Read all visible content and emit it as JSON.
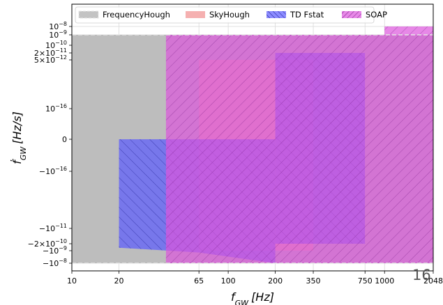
{
  "chart_data": {
    "type": "area",
    "xlabel": "f_GW [Hz]",
    "ylabel": "ḟ_GW [Hz/s]",
    "x_scale": "log",
    "y_scale": "symlog",
    "xlim": [
      10,
      2048
    ],
    "x_ticks": [
      10,
      20,
      65,
      100,
      200,
      350,
      750,
      1000,
      2048
    ],
    "y_ticks": [
      {
        "label": "10^-8",
        "value": 1e-08
      },
      {
        "label": "10^-9",
        "value": 1e-09
      },
      {
        "label": "10^-10",
        "value": 1e-10
      },
      {
        "label": "2×10^-11",
        "value": 2e-11
      },
      {
        "label": "5×10^-12",
        "value": 5e-12
      },
      {
        "label": "10^-16",
        "value": 1e-16
      },
      {
        "label": "0",
        "value": 0
      },
      {
        "label": "-10^-16",
        "value": -1e-16
      },
      {
        "label": "-10^-11",
        "value": -1e-11
      },
      {
        "label": "-2×10^-10",
        "value": -2e-10
      },
      {
        "label": "-10^-9",
        "value": -1e-09
      },
      {
        "label": "-10^-8",
        "value": -1e-08
      }
    ],
    "grid": true,
    "legend_position": "top",
    "series": [
      {
        "name": "FrequencyHough",
        "color": "#bdbdbd",
        "hatch": "none",
        "regions": [
          {
            "polygon": [
              [
                10,
                1e-09
              ],
              [
                2048,
                1e-09
              ],
              [
                2048,
                -1e-08
              ],
              [
                10,
                -1e-08
              ]
            ]
          }
        ]
      },
      {
        "name": "SkyHough",
        "color": "#f4a7a7",
        "hatch": "none",
        "regions": [
          {
            "polygon": [
              [
                65,
                5e-12
              ],
              [
                350,
                5e-12
              ],
              [
                350,
                -1e-09
              ],
              [
                65,
                -1e-09
              ]
            ]
          }
        ]
      },
      {
        "name": "TD Fstat",
        "color": "#5a5aff",
        "hatch": "backslash",
        "regions": [
          {
            "polygon": [
              [
                20,
                0
              ],
              [
                200,
                0
              ],
              [
                200,
                -1e-08
              ],
              [
                65,
                -1.4e-09
              ],
              [
                20,
                -5e-10
              ]
            ]
          },
          {
            "polygon": [
              [
                200,
                2e-11
              ],
              [
                750,
                2e-11
              ],
              [
                750,
                -2e-10
              ],
              [
                200,
                -2e-10
              ]
            ]
          }
        ]
      },
      {
        "name": "SOAP",
        "color": "#dd55dd",
        "hatch": "slash",
        "regions": [
          {
            "polygon": [
              [
                40,
                1e-09
              ],
              [
                2048,
                1e-09
              ],
              [
                2048,
                -1e-08
              ],
              [
                40,
                -1e-08
              ]
            ]
          },
          {
            "polygon": [
              [
                1000,
                1e-08
              ],
              [
                2048,
                1e-08
              ],
              [
                2048,
                1e-09
              ],
              [
                1000,
                1e-09
              ]
            ]
          }
        ]
      }
    ]
  },
  "page_number": "16"
}
